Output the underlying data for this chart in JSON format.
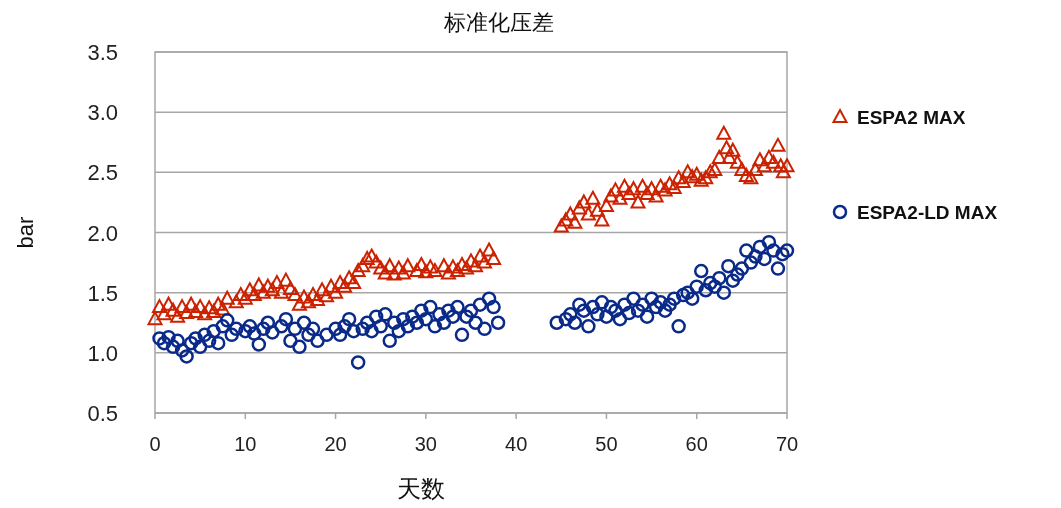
{
  "chart_data": {
    "type": "scatter",
    "title": "标准化压差",
    "xlabel": "天数",
    "ylabel": "bar",
    "xlim": [
      0,
      70
    ],
    "ylim": [
      0.5,
      3.5
    ],
    "xticks": [
      0,
      10,
      20,
      30,
      40,
      50,
      60,
      70
    ],
    "yticks": [
      {
        "value": 0.5,
        "label": "0.5"
      },
      {
        "value": 1,
        "label": "1.0"
      },
      {
        "value": 1.5,
        "label": "1.5"
      },
      {
        "value": 2,
        "label": "2.0"
      },
      {
        "value": 2.5,
        "label": "2.5"
      },
      {
        "value": 3,
        "label": "3.0"
      },
      {
        "value": 3.5,
        "label": "3.5"
      }
    ],
    "grid": "y",
    "legend": "right",
    "series": [
      {
        "name": "ESPA2 MAX",
        "color": "#cc2200",
        "marker": "triangle",
        "x": [
          0,
          0.5,
          1,
          1.5,
          2,
          2.5,
          3,
          3.5,
          4,
          4.5,
          5,
          5.5,
          6,
          6.5,
          7,
          7.5,
          8,
          9,
          9.5,
          10,
          10.5,
          11,
          11.5,
          12,
          12.5,
          13,
          13.5,
          14,
          14.5,
          15,
          15.5,
          16,
          16.5,
          17,
          17.5,
          18,
          18.5,
          19,
          19.5,
          20,
          20.5,
          21,
          21.5,
          22,
          22.5,
          23,
          23.5,
          24,
          24.5,
          25,
          25.5,
          26,
          26.5,
          27,
          27.5,
          28,
          29,
          29.5,
          30,
          30.5,
          31,
          32,
          32.5,
          33,
          33.5,
          34,
          34.5,
          35,
          35.5,
          36,
          36.5,
          37,
          37.5,
          45,
          45.5,
          46,
          46.5,
          47,
          47.5,
          48,
          48.5,
          49,
          49.5,
          50,
          50.5,
          51,
          51.5,
          52,
          52.5,
          53,
          53.5,
          54,
          54.5,
          55,
          55.5,
          56,
          56.5,
          57,
          57.5,
          58,
          58.5,
          59,
          59.5,
          60,
          60.5,
          61,
          61.5,
          62,
          62.5,
          63,
          63.3,
          63.6,
          64,
          64.5,
          65,
          65.5,
          66,
          66.5,
          67,
          67.5,
          68,
          68.5,
          69,
          69.3,
          69.6,
          70
        ],
        "values": [
          1.28,
          1.38,
          1.32,
          1.4,
          1.35,
          1.3,
          1.38,
          1.33,
          1.4,
          1.34,
          1.38,
          1.32,
          1.37,
          1.34,
          1.4,
          1.36,
          1.45,
          1.42,
          1.48,
          1.45,
          1.52,
          1.48,
          1.56,
          1.5,
          1.55,
          1.52,
          1.58,
          1.5,
          1.6,
          1.53,
          1.48,
          1.4,
          1.46,
          1.42,
          1.48,
          1.44,
          1.52,
          1.47,
          1.55,
          1.5,
          1.58,
          1.55,
          1.62,
          1.58,
          1.68,
          1.72,
          1.78,
          1.8,
          1.75,
          1.7,
          1.66,
          1.72,
          1.65,
          1.7,
          1.66,
          1.72,
          1.68,
          1.73,
          1.67,
          1.71,
          1.68,
          1.72,
          1.66,
          1.71,
          1.68,
          1.73,
          1.7,
          1.76,
          1.72,
          1.8,
          1.75,
          1.85,
          1.78,
          2.05,
          2.1,
          2.15,
          2.08,
          2.2,
          2.25,
          2.15,
          2.28,
          2.18,
          2.1,
          2.22,
          2.3,
          2.35,
          2.28,
          2.38,
          2.32,
          2.36,
          2.25,
          2.38,
          2.32,
          2.36,
          2.3,
          2.38,
          2.35,
          2.4,
          2.37,
          2.45,
          2.42,
          2.5,
          2.46,
          2.48,
          2.43,
          2.45,
          2.5,
          2.52,
          2.62,
          2.82,
          2.7,
          2.62,
          2.68,
          2.58,
          2.52,
          2.47,
          2.45,
          2.52,
          2.6,
          2.55,
          2.62,
          2.58,
          2.72,
          2.55,
          2.5,
          2.55
        ]
      },
      {
        "name": "ESPA2-LD MAX",
        "color": "#0a2a8a",
        "marker": "circle",
        "x": [
          0.5,
          1,
          1.5,
          2,
          2.5,
          3,
          3.5,
          4,
          4.5,
          5,
          5.5,
          6,
          6.5,
          7,
          7.5,
          8,
          8.5,
          9,
          10,
          10.5,
          11,
          11.5,
          12,
          12.5,
          13,
          14,
          14.5,
          15,
          15.5,
          16,
          16.5,
          17,
          17.5,
          18,
          19,
          20,
          20.5,
          21,
          21.5,
          22,
          22.5,
          23,
          23.5,
          24,
          24.5,
          25,
          25.5,
          26,
          26.5,
          27,
          27.5,
          28,
          28.5,
          29,
          29.5,
          30,
          30.5,
          31,
          31.5,
          32,
          32.5,
          33,
          33.5,
          34,
          34.5,
          35,
          35.5,
          36,
          36.5,
          37,
          37.5,
          38,
          44.5,
          45.5,
          46,
          46.5,
          47,
          47.5,
          48,
          48.5,
          49,
          49.5,
          50,
          50.5,
          51,
          51.5,
          52,
          52.5,
          53,
          53.5,
          54,
          54.5,
          55,
          55.5,
          56,
          56.5,
          57,
          57.5,
          58,
          58.5,
          59,
          59.5,
          60,
          60.5,
          61,
          61.5,
          62,
          62.5,
          63,
          63.5,
          64,
          64.5,
          65,
          65.5,
          66,
          66.5,
          67,
          67.5,
          68,
          68.5,
          69,
          69.5,
          70
        ],
        "values": [
          1.12,
          1.08,
          1.13,
          1.05,
          1.1,
          1.02,
          0.97,
          1.08,
          1.12,
          1.05,
          1.15,
          1.1,
          1.18,
          1.08,
          1.22,
          1.27,
          1.15,
          1.2,
          1.18,
          1.22,
          1.16,
          1.07,
          1.2,
          1.25,
          1.17,
          1.22,
          1.28,
          1.1,
          1.2,
          1.05,
          1.25,
          1.15,
          1.2,
          1.1,
          1.15,
          1.2,
          1.15,
          1.22,
          1.28,
          1.18,
          0.92,
          1.2,
          1.25,
          1.18,
          1.3,
          1.22,
          1.32,
          1.1,
          1.25,
          1.18,
          1.28,
          1.22,
          1.3,
          1.25,
          1.35,
          1.28,
          1.38,
          1.22,
          1.32,
          1.25,
          1.35,
          1.3,
          1.38,
          1.15,
          1.3,
          1.35,
          1.25,
          1.4,
          1.2,
          1.45,
          1.38,
          1.25,
          1.25,
          1.28,
          1.32,
          1.25,
          1.4,
          1.35,
          1.22,
          1.38,
          1.32,
          1.42,
          1.3,
          1.38,
          1.35,
          1.28,
          1.4,
          1.33,
          1.45,
          1.35,
          1.4,
          1.3,
          1.45,
          1.38,
          1.42,
          1.35,
          1.4,
          1.45,
          1.22,
          1.48,
          1.5,
          1.45,
          1.55,
          1.68,
          1.52,
          1.58,
          1.55,
          1.62,
          1.5,
          1.72,
          1.6,
          1.65,
          1.7,
          1.85,
          1.75,
          1.8,
          1.88,
          1.78,
          1.92,
          1.85,
          1.7,
          1.82,
          1.85
        ]
      }
    ]
  }
}
